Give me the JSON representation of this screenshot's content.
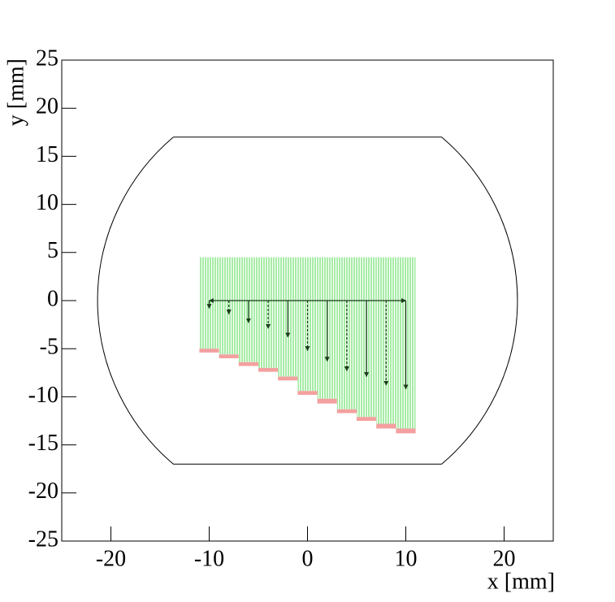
{
  "chart_data": {
    "type": "wafer-map",
    "xlabel": "x [mm]",
    "ylabel": "y [mm]",
    "xlim": [
      -25,
      25
    ],
    "ylim": [
      -25,
      25
    ],
    "xticks": [
      -20,
      -10,
      0,
      10,
      20
    ],
    "yticks": [
      -25,
      -20,
      -15,
      -10,
      -5,
      0,
      5,
      10,
      15,
      20,
      25
    ],
    "wafer": {
      "radius": 21.8,
      "flat_y": 17,
      "color": "#000000"
    },
    "columns": {
      "bins": [
        -11,
        -9,
        -7,
        -5,
        -3,
        -1,
        1,
        3,
        5,
        7,
        9,
        11
      ],
      "top": 4.5,
      "edge": [
        -5.0,
        -5.6,
        -6.4,
        -7.0,
        -7.9,
        -9.4,
        -10.2,
        -11.3,
        -12.1,
        -12.8,
        -13.3
      ],
      "bottom": [
        -5.4,
        -6.0,
        -6.8,
        -7.4,
        -8.3,
        -9.8,
        -10.7,
        -11.7,
        -12.5,
        -13.3,
        -13.8
      ],
      "color": "#a6eca6",
      "edge_color": "#f4a0a0"
    },
    "arrows": {
      "baseline": 0,
      "x": [
        -10,
        -8,
        -6,
        -4,
        -2,
        0,
        2,
        4,
        6,
        8,
        10
      ],
      "values": [
        -0.8,
        -1.4,
        -2.3,
        -2.9,
        -3.8,
        -5.2,
        -6.3,
        -7.3,
        -7.9,
        -8.8,
        -9.2
      ],
      "color": "#1a3a1a"
    }
  }
}
